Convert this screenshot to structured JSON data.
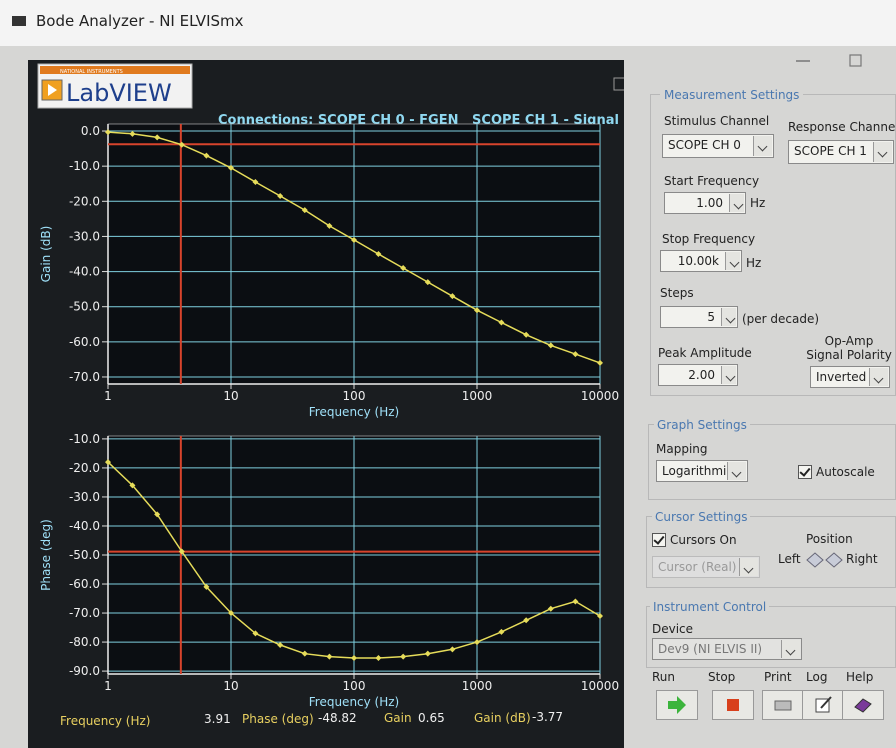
{
  "window": {
    "title": "Bode Analyzer - NI ELVISmx"
  },
  "logo": {
    "company": "NATIONAL INSTRUMENTS",
    "product": "LabVIEW"
  },
  "connections": "Connections: SCOPE CH 0 - FGEN   SCOPE CH 1 - Signal",
  "chart_data": [
    {
      "type": "line",
      "ylabel": "Gain (dB)",
      "xlabel": "Frequency (Hz)",
      "xscale": "log",
      "grid": true,
      "color": "#e6dc5a",
      "x": [
        1,
        1.58,
        2.51,
        3.98,
        6.31,
        10,
        15.8,
        25.1,
        39.8,
        63.1,
        100,
        158,
        251,
        398,
        631,
        1000,
        1580,
        2510,
        3980,
        6310,
        10000
      ],
      "values": [
        -0.3,
        -0.8,
        -1.8,
        -3.9,
        -7,
        -10.5,
        -14.5,
        -18.5,
        -22.5,
        -27,
        -31,
        -35,
        -39,
        -43,
        -47,
        -51,
        -54.5,
        -58,
        -61,
        -63.5,
        -66
      ],
      "xlim": [
        1,
        10000
      ],
      "ylim": [
        -72,
        2
      ],
      "xticks": [
        1,
        10,
        100,
        1000,
        10000
      ],
      "yticks": [
        {
          "value": 0,
          "label": "0.0"
        },
        {
          "value": -10,
          "label": "-10.0"
        },
        {
          "value": -20,
          "label": "-20.0"
        },
        {
          "value": -30,
          "label": "-30.0"
        },
        {
          "value": -40,
          "label": "-40.0"
        },
        {
          "value": -50,
          "label": "-50.0"
        },
        {
          "value": -60,
          "label": "-60.0"
        },
        {
          "value": -70,
          "label": "-70.0"
        }
      ]
    },
    {
      "type": "line",
      "ylabel": "Phase (deg)",
      "xlabel": "Frequency (Hz)",
      "xscale": "log",
      "grid": true,
      "color": "#e6dc5a",
      "x": [
        1,
        1.58,
        2.51,
        3.98,
        6.31,
        10,
        15.8,
        25.1,
        39.8,
        63.1,
        100,
        158,
        251,
        398,
        631,
        1000,
        1580,
        2510,
        3980,
        6310,
        10000
      ],
      "values": [
        -18,
        -26,
        -36,
        -48.8,
        -61,
        -70,
        -77,
        -81,
        -84,
        -85,
        -85.5,
        -85.5,
        -85,
        -84,
        -82.5,
        -80,
        -76.5,
        -72.5,
        -68.5,
        -66,
        -71
      ],
      "xlim": [
        1,
        10000
      ],
      "ylim": [
        -91,
        -9
      ],
      "xticks": [
        1,
        10,
        100,
        1000,
        10000
      ],
      "yticks": [
        {
          "value": -10,
          "label": "-10.0"
        },
        {
          "value": -20,
          "label": "-20.0"
        },
        {
          "value": -30,
          "label": "-30.0"
        },
        {
          "value": -40,
          "label": "-40.0"
        },
        {
          "value": -50,
          "label": "-50.0"
        },
        {
          "value": -60,
          "label": "-60.0"
        },
        {
          "value": -70,
          "label": "-70.0"
        },
        {
          "value": -80,
          "label": "-80.0"
        },
        {
          "value": -90,
          "label": "-90.0"
        }
      ]
    }
  ],
  "readouts": [
    {
      "label": "Frequency (Hz)",
      "value": 3.91
    },
    {
      "label": "Phase (deg)",
      "value": -48.82
    },
    {
      "label": "Gain",
      "value": 0.65
    },
    {
      "label": "Gain (dB)",
      "value": -3.77
    }
  ],
  "measurement_settings": {
    "title": "Measurement Settings",
    "stimulus_channel": {
      "label": "Stimulus Channel",
      "value": "SCOPE CH 0"
    },
    "response_channel": {
      "label": "Response Channel",
      "value": "SCOPE CH 1"
    },
    "start_frequency": {
      "label": "Start Frequency",
      "value": "1.00",
      "unit": "Hz"
    },
    "stop_frequency": {
      "label": "Stop Frequency",
      "value": "10.00k",
      "unit": "Hz"
    },
    "steps": {
      "label": "Steps",
      "value": "5",
      "unit": "(per decade)"
    },
    "peak_amplitude": {
      "label": "Peak Amplitude",
      "value": "2.00"
    },
    "polarity": {
      "label": "Op-Amp Signal Polarity",
      "value": "Inverted"
    }
  },
  "graph_settings": {
    "title": "Graph Settings",
    "mapping": {
      "label": "Mapping",
      "value": "Logarithmic"
    },
    "autoscale": "Autoscale"
  },
  "cursor_settings": {
    "title": "Cursor Settings",
    "cursors_on": "Cursors On",
    "position": "Position",
    "left": "Left",
    "right": "Right",
    "mode": "Cursor (Real)"
  },
  "instrument_control": {
    "title": "Instrument Control",
    "device": {
      "label": "Device",
      "value": "Dev9 (NI ELVIS II)"
    },
    "buttons": [
      "Run",
      "Stop",
      "Print",
      "Log",
      "Help"
    ]
  }
}
